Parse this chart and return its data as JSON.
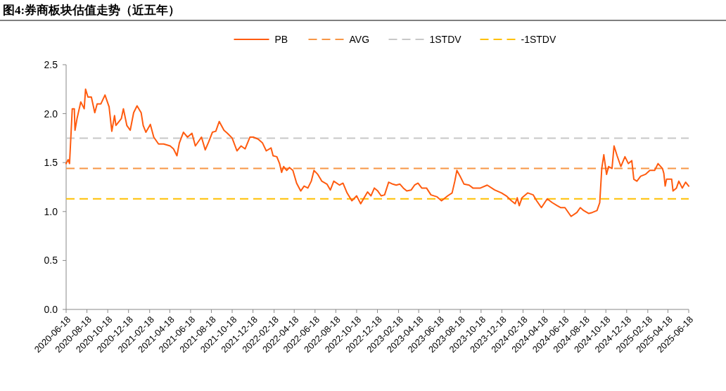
{
  "chart_data": {
    "type": "line",
    "title": "图4:券商板块估值走势（近五年）",
    "x": [
      "2020-06-18",
      "2020-06-24",
      "2020-06-28",
      "2020-07-06",
      "2020-07-12",
      "2020-07-14",
      "2020-07-20",
      "2020-07-31",
      "2020-08-10",
      "2020-08-14",
      "2020-08-21",
      "2020-08-31",
      "2020-09-10",
      "2020-09-17",
      "2020-09-28",
      "2020-10-10",
      "2020-10-22",
      "2020-10-30",
      "2020-11-07",
      "2020-11-11",
      "2020-11-27",
      "2020-12-03",
      "2020-12-13",
      "2020-12-23",
      "2021-01-02",
      "2021-01-12",
      "2021-01-24",
      "2021-01-30",
      "2021-02-07",
      "2021-02-20",
      "2021-03-02",
      "2021-03-16",
      "2021-03-31",
      "2021-04-19",
      "2021-04-29",
      "2021-05-09",
      "2021-05-16",
      "2021-05-28",
      "2021-06-09",
      "2021-06-22",
      "2021-07-02",
      "2021-07-20",
      "2021-07-31",
      "2021-08-10",
      "2021-08-21",
      "2021-08-31",
      "2021-09-10",
      "2021-09-24",
      "2021-10-04",
      "2021-10-18",
      "2021-11-01",
      "2021-11-13",
      "2021-11-25",
      "2021-12-09",
      "2021-12-19",
      "2022-01-02",
      "2022-01-15",
      "2022-01-26",
      "2022-02-09",
      "2022-02-15",
      "2022-02-26",
      "2022-03-06",
      "2022-03-12",
      "2022-03-18",
      "2022-03-27",
      "2022-04-04",
      "2022-04-14",
      "2022-04-25",
      "2022-05-07",
      "2022-05-17",
      "2022-05-28",
      "2022-06-07",
      "2022-06-15",
      "2022-06-26",
      "2022-07-08",
      "2022-07-23",
      "2022-08-02",
      "2022-08-12",
      "2022-08-29",
      "2022-09-08",
      "2022-09-20",
      "2022-10-04",
      "2022-10-18",
      "2022-10-30",
      "2022-11-09",
      "2022-11-19",
      "2022-11-29",
      "2022-12-09",
      "2022-12-19",
      "2022-12-29",
      "2023-01-08",
      "2023-01-20",
      "2023-02-01",
      "2023-02-11",
      "2023-02-22",
      "2023-03-04",
      "2023-03-14",
      "2023-03-27",
      "2023-04-06",
      "2023-04-16",
      "2023-04-27",
      "2023-05-11",
      "2023-05-24",
      "2023-06-11",
      "2023-06-24",
      "2023-07-12",
      "2023-07-25",
      "2023-08-02",
      "2023-08-08",
      "2023-08-19",
      "2023-08-29",
      "2023-09-13",
      "2023-09-24",
      "2023-10-06",
      "2023-10-16",
      "2023-11-05",
      "2023-11-27",
      "2023-12-17",
      "2023-12-31",
      "2024-01-15",
      "2024-01-26",
      "2024-02-01",
      "2024-02-07",
      "2024-02-15",
      "2024-03-03",
      "2024-03-19",
      "2024-03-29",
      "2024-04-12",
      "2024-04-29",
      "2024-05-14",
      "2024-05-28",
      "2024-06-07",
      "2024-06-20",
      "2024-07-08",
      "2024-07-25",
      "2024-08-04",
      "2024-08-14",
      "2024-08-29",
      "2024-09-08",
      "2024-09-22",
      "2024-09-30",
      "2024-10-06",
      "2024-10-12",
      "2024-10-20",
      "2024-10-26",
      "2024-11-05",
      "2024-11-11",
      "2024-11-20",
      "2024-12-01",
      "2024-12-13",
      "2024-12-23",
      "2025-01-02",
      "2025-01-08",
      "2025-01-17",
      "2025-01-28",
      "2025-02-11",
      "2025-02-24",
      "2025-03-10",
      "2025-03-20",
      "2025-04-02",
      "2025-04-06",
      "2025-04-10",
      "2025-04-14",
      "2025-04-29",
      "2025-05-03",
      "2025-05-13",
      "2025-05-20",
      "2025-05-30",
      "2025-06-09",
      "2025-06-18"
    ],
    "series": [
      {
        "name": "PB",
        "color": "#ff5b0f",
        "values": [
          1.49,
          1.53,
          1.49,
          2.05,
          2.05,
          1.83,
          1.95,
          2.12,
          2.05,
          2.25,
          2.17,
          2.17,
          2.01,
          2.1,
          2.1,
          2.19,
          2.07,
          1.82,
          1.98,
          1.88,
          1.95,
          2.05,
          1.88,
          1.83,
          2.01,
          2.08,
          2.01,
          1.88,
          1.81,
          1.89,
          1.76,
          1.69,
          1.69,
          1.67,
          1.64,
          1.57,
          1.7,
          1.81,
          1.76,
          1.8,
          1.67,
          1.76,
          1.63,
          1.71,
          1.81,
          1.82,
          1.92,
          1.83,
          1.8,
          1.75,
          1.62,
          1.67,
          1.64,
          1.76,
          1.76,
          1.74,
          1.7,
          1.62,
          1.65,
          1.57,
          1.56,
          1.49,
          1.4,
          1.46,
          1.42,
          1.45,
          1.42,
          1.29,
          1.21,
          1.26,
          1.24,
          1.31,
          1.42,
          1.38,
          1.31,
          1.28,
          1.22,
          1.31,
          1.27,
          1.29,
          1.19,
          1.11,
          1.16,
          1.08,
          1.14,
          1.2,
          1.16,
          1.24,
          1.21,
          1.16,
          1.17,
          1.3,
          1.28,
          1.27,
          1.28,
          1.24,
          1.21,
          1.22,
          1.27,
          1.29,
          1.24,
          1.24,
          1.17,
          1.15,
          1.11,
          1.16,
          1.19,
          1.31,
          1.42,
          1.35,
          1.28,
          1.27,
          1.24,
          1.24,
          1.24,
          1.27,
          1.22,
          1.19,
          1.16,
          1.11,
          1.08,
          1.14,
          1.06,
          1.14,
          1.19,
          1.17,
          1.11,
          1.04,
          1.13,
          1.09,
          1.06,
          1.04,
          1.04,
          0.95,
          0.99,
          1.04,
          1.01,
          0.98,
          0.99,
          1.01,
          1.09,
          1.44,
          1.58,
          1.38,
          1.46,
          1.44,
          1.67,
          1.57,
          1.46,
          1.56,
          1.49,
          1.52,
          1.33,
          1.31,
          1.36,
          1.38,
          1.42,
          1.42,
          1.49,
          1.44,
          1.39,
          1.26,
          1.33,
          1.33,
          1.21,
          1.24,
          1.31,
          1.24,
          1.3,
          1.26
        ]
      }
    ],
    "ref_lines": [
      {
        "axis": "y",
        "value": 1.44,
        "label": "AVG",
        "color": "#f79646",
        "line_style": "dashed"
      },
      {
        "axis": "y",
        "value": 1.75,
        "label": "1STDV",
        "color": "#c8c8c8",
        "line_style": "dashed"
      },
      {
        "axis": "y",
        "value": 1.13,
        "label": "-1STDV",
        "color": "#ffc000",
        "line_style": "dashed"
      }
    ],
    "xlim": [
      "2020-06-18",
      "2025-06-18"
    ],
    "xticks": [
      "2020-06-18",
      "2020-08-18",
      "2020-10-18",
      "2020-12-18",
      "2021-02-18",
      "2021-04-18",
      "2021-06-18",
      "2021-08-18",
      "2021-10-18",
      "2021-12-18",
      "2022-02-18",
      "2022-04-18",
      "2022-06-18",
      "2022-08-18",
      "2022-10-18",
      "2022-12-18",
      "2023-02-18",
      "2023-04-18",
      "2023-06-18",
      "2023-08-18",
      "2023-10-18",
      "2023-12-18",
      "2024-02-18",
      "2024-04-18",
      "2024-06-18",
      "2024-08-18",
      "2024-10-18",
      "2024-12-18",
      "2025-02-18",
      "2025-04-18",
      "2025-06-18"
    ],
    "ylim": [
      0,
      2.5
    ],
    "yticks": [
      {
        "value": 0,
        "label": "0.0"
      },
      0.5,
      {
        "value": 1,
        "label": "1.0"
      },
      1.5,
      {
        "value": 2,
        "label": "2.0"
      },
      2.5
    ],
    "legend": "top",
    "line_style": "solid"
  }
}
